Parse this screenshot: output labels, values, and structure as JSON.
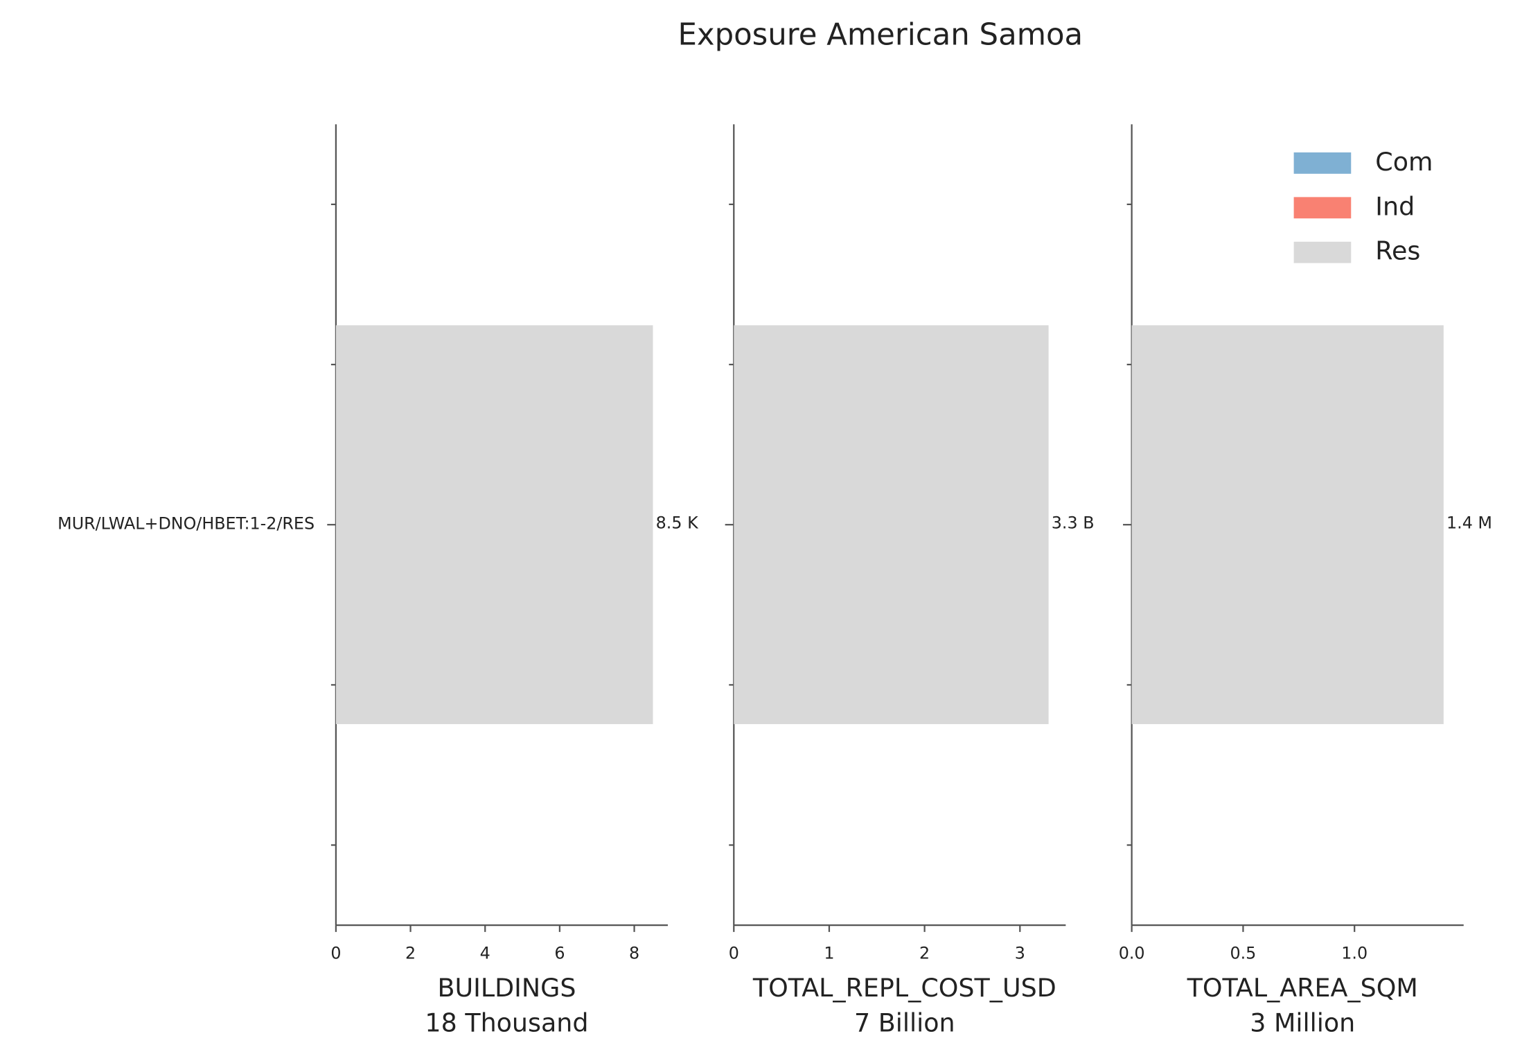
{
  "title": "Exposure American Samoa",
  "chart_data": [
    {
      "type": "barh",
      "categories": [
        "MUR/LWAL+DNO/HBET:1-2/RES"
      ],
      "series": [
        {
          "name": "Com",
          "color": "#7fb0d3",
          "values": [
            null
          ]
        },
        {
          "name": "Ind",
          "color": "#f98172",
          "values": [
            null
          ]
        },
        {
          "name": "Res",
          "color": "#d9d9d9",
          "values": [
            8.5
          ],
          "value_labels": [
            "8.5 K"
          ]
        }
      ],
      "xlim": [
        0,
        8.9
      ],
      "xticks": [
        0,
        2,
        4,
        6,
        8
      ],
      "xlabel": [
        "BUILDINGS",
        "18 Thousand"
      ],
      "legend": false
    },
    {
      "type": "barh",
      "categories": [
        null
      ],
      "series": [
        {
          "name": "Com",
          "color": "#7fb0d3",
          "values": [
            null
          ]
        },
        {
          "name": "Ind",
          "color": "#f98172",
          "values": [
            null
          ]
        },
        {
          "name": "Res",
          "color": "#d9d9d9",
          "values": [
            3.3
          ],
          "value_labels": [
            "3.3 B"
          ]
        }
      ],
      "xlim": [
        0,
        3.48
      ],
      "xticks": [
        0,
        1,
        2,
        3
      ],
      "xlabel": [
        "TOTAL_REPL_COST_USD",
        "7 Billion"
      ],
      "legend": false
    },
    {
      "type": "barh",
      "categories": [
        null
      ],
      "series": [
        {
          "name": "Com",
          "color": "#7fb0d3",
          "values": [
            null
          ]
        },
        {
          "name": "Ind",
          "color": "#f98172",
          "values": [
            null
          ]
        },
        {
          "name": "Res",
          "color": "#d9d9d9",
          "values": [
            1.4
          ],
          "value_labels": [
            "1.4 M"
          ]
        }
      ],
      "xlim": [
        0,
        1.49
      ],
      "xticks": [
        {
          "value": 0,
          "label": "0.0"
        },
        0.5,
        {
          "value": 1,
          "label": "1.0"
        }
      ],
      "xlabel": [
        "TOTAL_AREA_SQM",
        "3 Million"
      ],
      "legend": "upper right"
    }
  ]
}
